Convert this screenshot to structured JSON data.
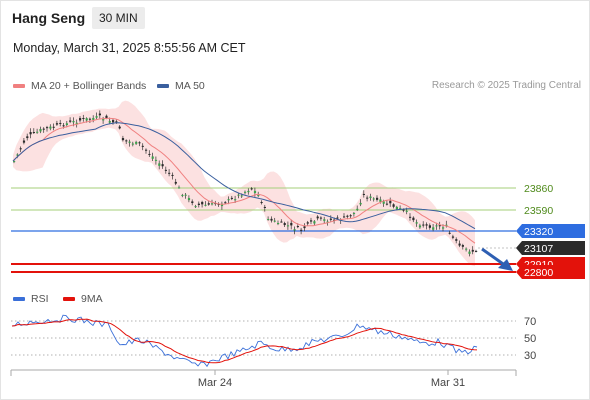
{
  "header": {
    "title": "Hang Seng",
    "timeframe": "30 MIN",
    "datetime": "Monday, March 31, 2025 8:55:56 AM CET"
  },
  "legend": {
    "ma20": "MA 20 + Bollinger Bands",
    "ma20_color": "#f08080",
    "ma50": "MA 50",
    "ma50_color": "#3a5f9e",
    "credit": "Research © 2025 Trading Central"
  },
  "levels": [
    {
      "label": "23860",
      "kind": "resistance",
      "color": "#a5cf7a"
    },
    {
      "label": "23590",
      "kind": "resistance",
      "color": "#a5cf7a"
    },
    {
      "label": "23320",
      "kind": "pivot",
      "color": "#2e6de0"
    },
    {
      "label": "23107",
      "kind": "last",
      "color": "#2b2b2b"
    },
    {
      "label": "22910",
      "kind": "support",
      "color": "#e3120b"
    },
    {
      "label": "22800",
      "kind": "support",
      "color": "#e3120b"
    }
  ],
  "rsi": {
    "legend_rsi": "RSI",
    "legend_9ma": "9MA",
    "rsi_color": "#3a6fd8",
    "ma_color": "#e3120b",
    "levels": [
      "70",
      "50",
      "30"
    ]
  },
  "xaxis": {
    "labels": [
      "Mar 24",
      "Mar 31"
    ]
  }
}
